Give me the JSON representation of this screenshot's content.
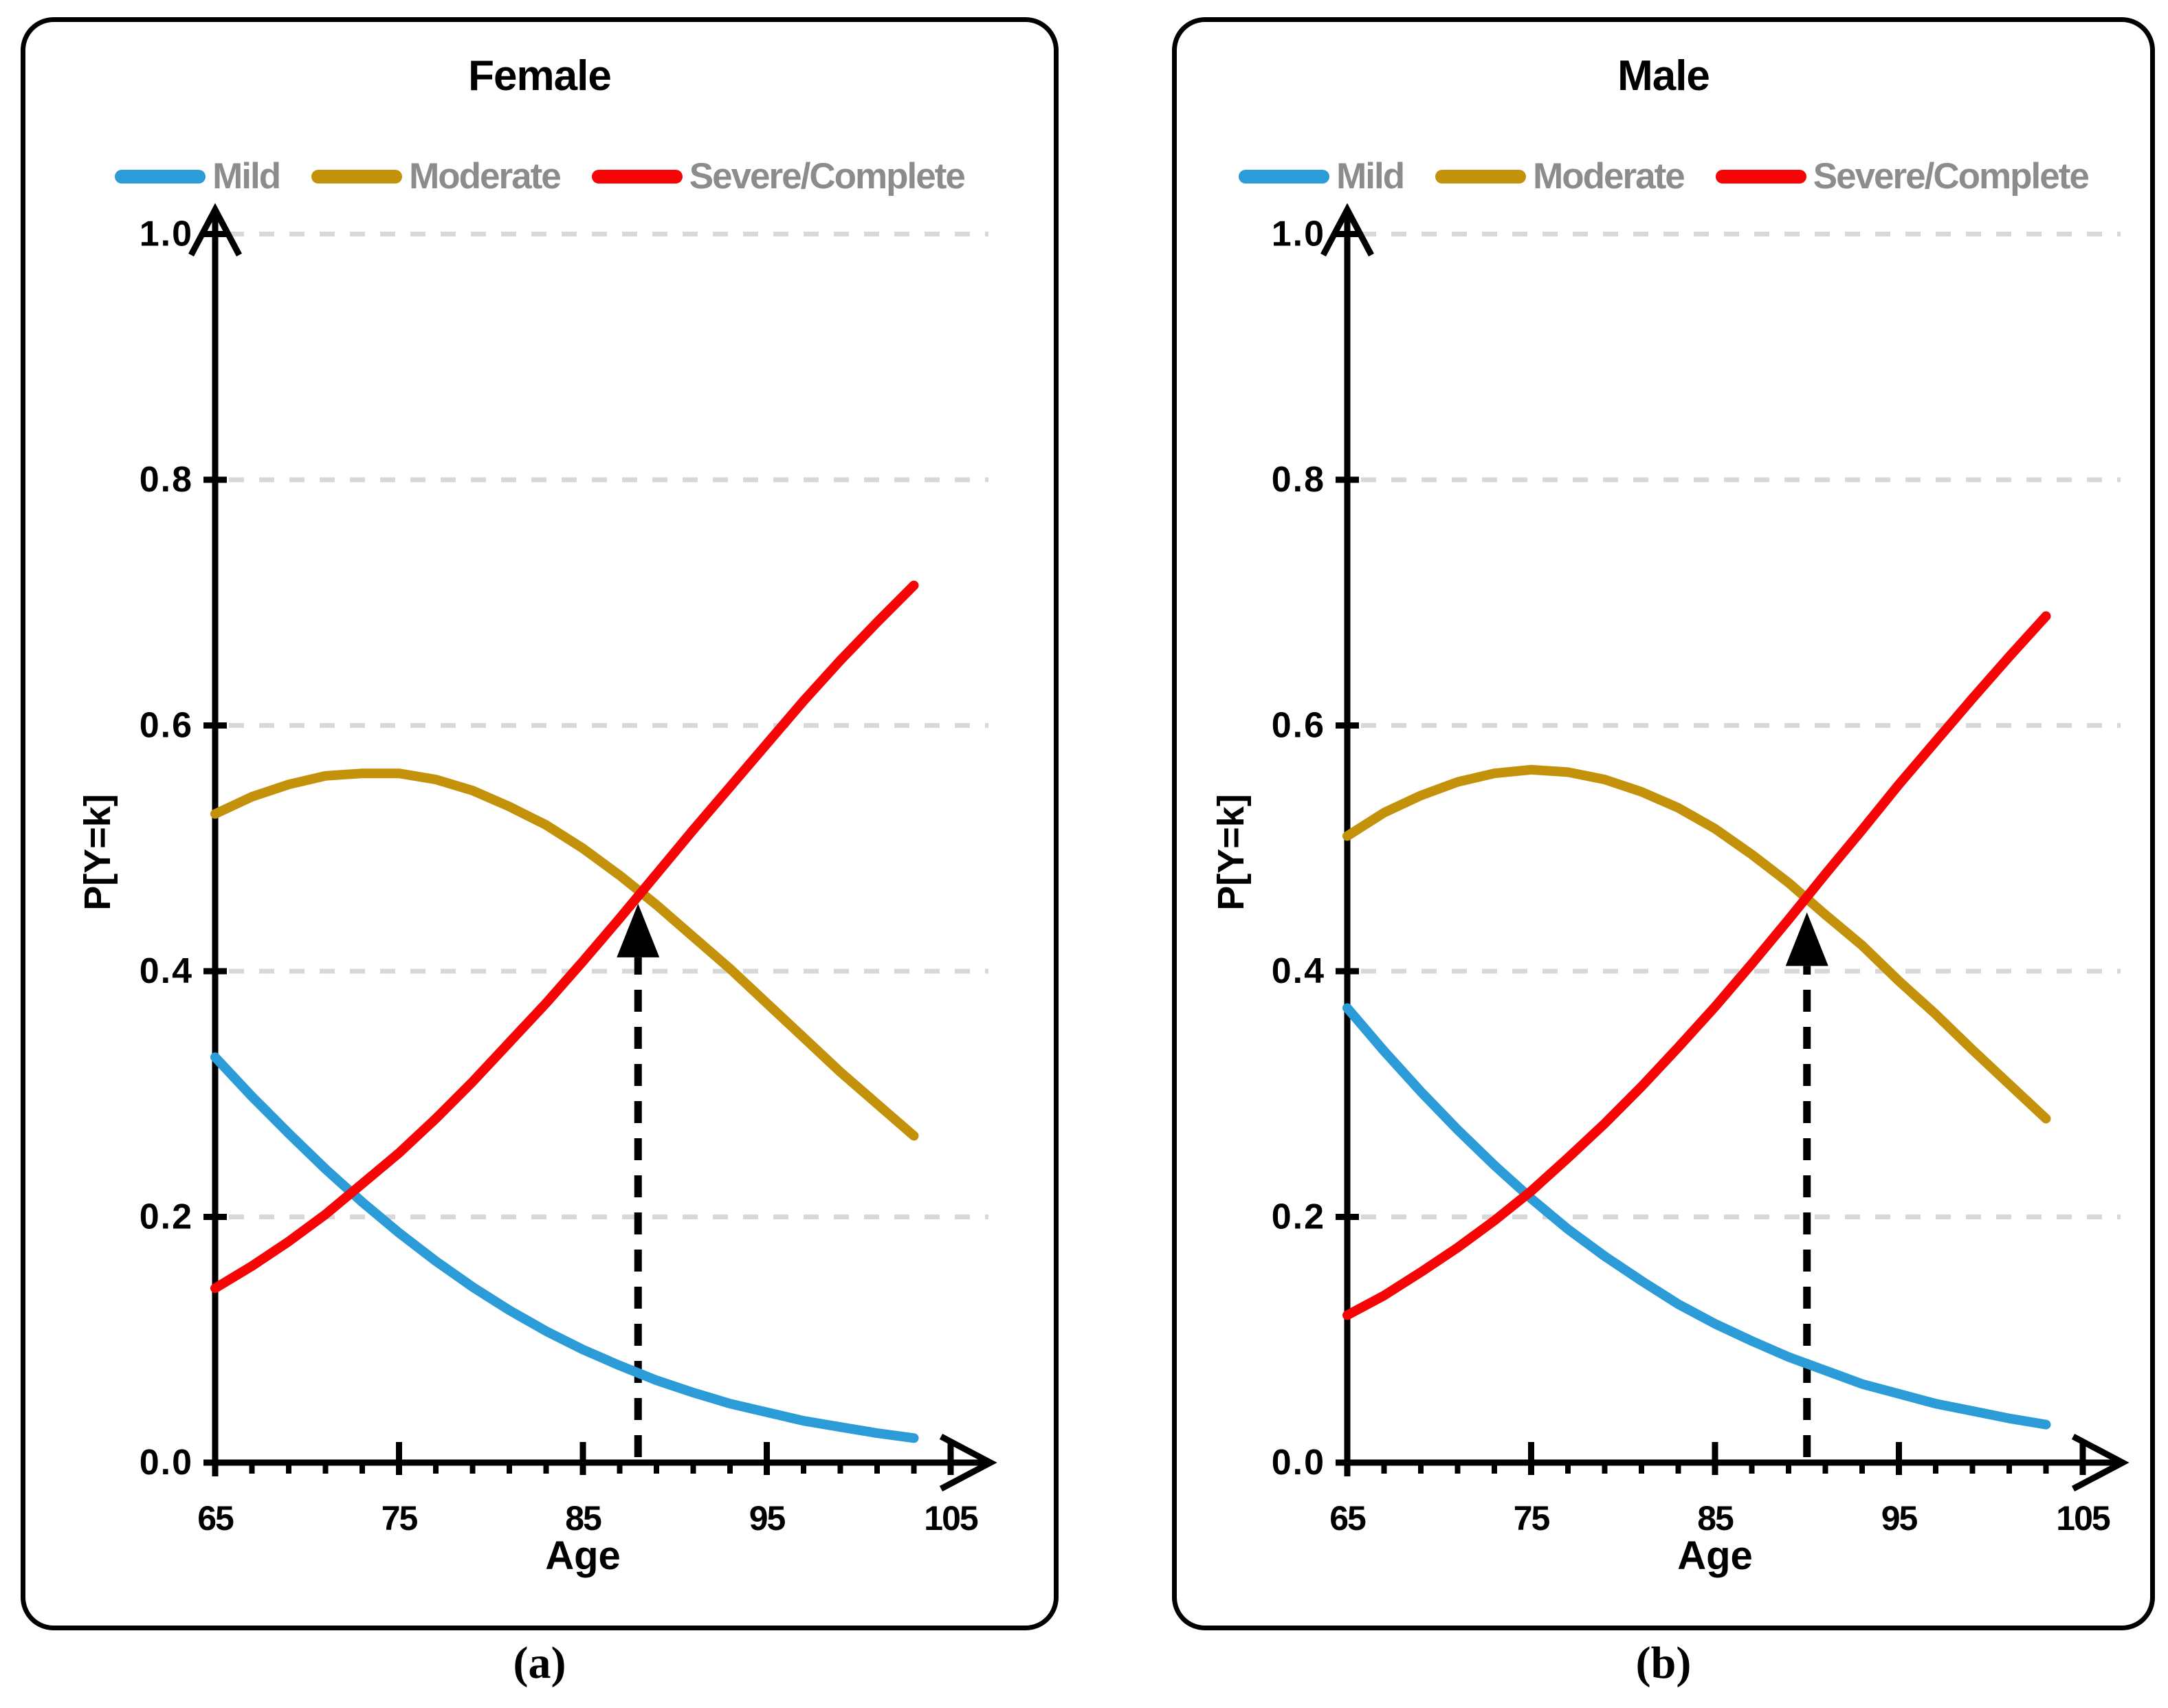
{
  "panels": [
    {
      "key": "female",
      "title": "Female",
      "caption": "(a)",
      "legend": [
        {
          "label": "Mild",
          "color": "#2B9CD8"
        },
        {
          "label": "Moderate",
          "color": "#C4920A"
        },
        {
          "label": "Severe/Complete",
          "color": "#F50505"
        }
      ]
    },
    {
      "key": "male",
      "title": "Male",
      "caption": "(b)",
      "legend": [
        {
          "label": "Mild",
          "color": "#2B9CD8"
        },
        {
          "label": "Moderate",
          "color": "#C4920A"
        },
        {
          "label": "Severe/Complete",
          "color": "#F50505"
        }
      ]
    }
  ],
  "style_colors": {
    "grid": "#D8D8D8",
    "axis": "#000000",
    "legend_text": "#8C8C8C",
    "annotation": "#000000"
  },
  "chart_data": [
    {
      "type": "line",
      "title": "Female",
      "xlabel": "Age",
      "ylabel": "P[Y=k]",
      "xlim": [
        65,
        105
      ],
      "ylim": [
        0.0,
        1.0
      ],
      "x_ticks": [
        65,
        75,
        85,
        95,
        105
      ],
      "x_minor_tick_step": 2,
      "y_ticks": [
        0.0,
        0.2,
        0.4,
        0.6,
        0.8,
        1.0
      ],
      "y_tick_labels": [
        "0.0",
        "0.2",
        "0.4",
        "0.6",
        "0.8",
        "1.0"
      ],
      "grid": "horizontal-dashed",
      "legend_position": "top",
      "x": [
        65,
        67,
        69,
        71,
        73,
        75,
        77,
        79,
        81,
        83,
        85,
        87,
        89,
        91,
        93,
        95,
        97,
        99,
        101,
        103
      ],
      "series": [
        {
          "name": "Mild",
          "color": "#2B9CD8",
          "values": [
            0.33,
            0.298,
            0.268,
            0.239,
            0.212,
            0.187,
            0.164,
            0.143,
            0.124,
            0.107,
            0.092,
            0.079,
            0.067,
            0.057,
            0.048,
            0.041,
            0.034,
            0.029,
            0.024,
            0.02
          ]
        },
        {
          "name": "Moderate",
          "color": "#C4920A",
          "values": [
            0.528,
            0.542,
            0.552,
            0.559,
            0.561,
            0.561,
            0.556,
            0.547,
            0.534,
            0.519,
            0.5,
            0.478,
            0.454,
            0.428,
            0.402,
            0.374,
            0.346,
            0.318,
            0.292,
            0.266
          ]
        },
        {
          "name": "Severe/Complete",
          "color": "#F50505",
          "values": [
            0.142,
            0.16,
            0.18,
            0.202,
            0.227,
            0.252,
            0.28,
            0.31,
            0.342,
            0.374,
            0.408,
            0.443,
            0.479,
            0.515,
            0.55,
            0.585,
            0.62,
            0.653,
            0.684,
            0.714
          ]
        }
      ],
      "annotation_arrow": {
        "x": 88,
        "y": 0.465
      }
    },
    {
      "type": "line",
      "title": "Male",
      "xlabel": "Age",
      "ylabel": "P[Y=k]",
      "xlim": [
        65,
        105
      ],
      "ylim": [
        0.0,
        1.0
      ],
      "x_ticks": [
        65,
        75,
        85,
        95,
        105
      ],
      "x_minor_tick_step": 2,
      "y_ticks": [
        0.0,
        0.2,
        0.4,
        0.6,
        0.8,
        1.0
      ],
      "y_tick_labels": [
        "0.0",
        "0.2",
        "0.4",
        "0.6",
        "0.8",
        "1.0"
      ],
      "grid": "horizontal-dashed",
      "legend_position": "top",
      "x": [
        65,
        67,
        69,
        71,
        73,
        75,
        77,
        79,
        81,
        83,
        85,
        87,
        89,
        91,
        93,
        95,
        97,
        99,
        101,
        103
      ],
      "series": [
        {
          "name": "Mild",
          "color": "#2B9CD8",
          "values": [
            0.37,
            0.335,
            0.302,
            0.271,
            0.242,
            0.215,
            0.19,
            0.168,
            0.148,
            0.129,
            0.113,
            0.099,
            0.086,
            0.075,
            0.064,
            0.056,
            0.048,
            0.042,
            0.036,
            0.031
          ]
        },
        {
          "name": "Moderate",
          "color": "#C4920A",
          "values": [
            0.51,
            0.529,
            0.543,
            0.554,
            0.561,
            0.564,
            0.562,
            0.556,
            0.546,
            0.533,
            0.516,
            0.495,
            0.472,
            0.446,
            0.421,
            0.392,
            0.365,
            0.336,
            0.308,
            0.28
          ]
        },
        {
          "name": "Severe/Complete",
          "color": "#F50505",
          "values": [
            0.12,
            0.136,
            0.155,
            0.175,
            0.197,
            0.221,
            0.248,
            0.276,
            0.306,
            0.338,
            0.371,
            0.406,
            0.442,
            0.479,
            0.515,
            0.552,
            0.587,
            0.622,
            0.656,
            0.689
          ]
        }
      ],
      "annotation_arrow": {
        "x": 90,
        "y": 0.458
      }
    }
  ]
}
